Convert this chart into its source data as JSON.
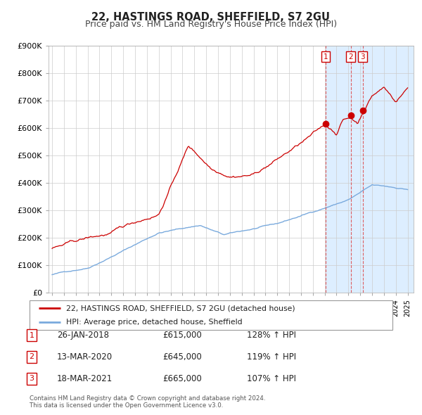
{
  "title": "22, HASTINGS ROAD, SHEFFIELD, S7 2GU",
  "subtitle": "Price paid vs. HM Land Registry's House Price Index (HPI)",
  "hpi_color": "#7aaadd",
  "price_color": "#cc0000",
  "background_fig": "#ffffff",
  "grid_color": "#cccccc",
  "ylim": [
    0,
    900000
  ],
  "yticks": [
    0,
    100000,
    200000,
    300000,
    400000,
    500000,
    600000,
    700000,
    800000,
    900000
  ],
  "ytick_labels": [
    "£0",
    "£100K",
    "£200K",
    "£300K",
    "£400K",
    "£500K",
    "£600K",
    "£700K",
    "£800K",
    "£900K"
  ],
  "transactions": [
    {
      "num": 1,
      "date": "26-JAN-2018",
      "price": 615000,
      "price_str": "£615,000",
      "pct": "128%",
      "year": 2018.07
    },
    {
      "num": 2,
      "date": "13-MAR-2020",
      "price": 645000,
      "price_str": "£645,000",
      "pct": "119%",
      "year": 2020.2
    },
    {
      "num": 3,
      "date": "18-MAR-2021",
      "price": 665000,
      "price_str": "£665,000",
      "pct": "107%",
      "year": 2021.21
    }
  ],
  "marker_years": [
    2018.07,
    2020.2,
    2021.21
  ],
  "marker_prices": [
    615000,
    645000,
    665000
  ],
  "vline_years": [
    2018.07,
    2020.2,
    2021.21
  ],
  "legend_label1": "22, HASTINGS ROAD, SHEFFIELD, S7 2GU (detached house)",
  "legend_label2": "HPI: Average price, detached house, Sheffield",
  "footnote1": "Contains HM Land Registry data © Crown copyright and database right 2024.",
  "footnote2": "This data is licensed under the Open Government Licence v3.0.",
  "title_fontsize": 10.5,
  "subtitle_fontsize": 9,
  "axis_fontsize": 8
}
